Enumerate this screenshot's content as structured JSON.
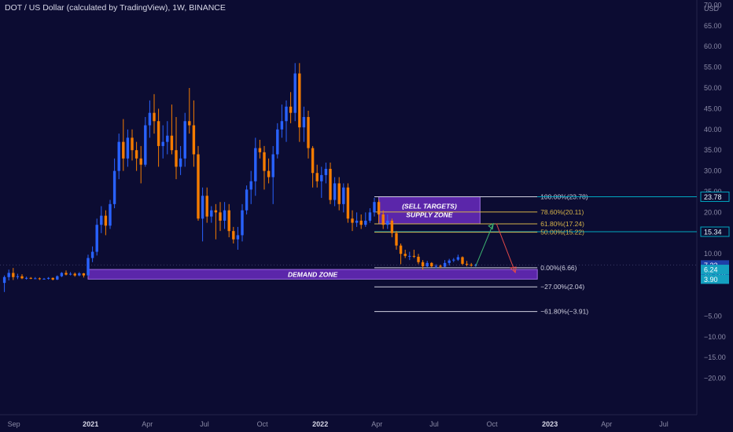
{
  "header": {
    "title": "DOT / US Dollar (calculated by TradingView), 1W, BINANCE",
    "currency": "USD"
  },
  "colors": {
    "background": "#0c0c32",
    "up": "#2962ff",
    "down": "#f57c00",
    "zone": "#6a2cc0",
    "fib_line": "#d0d0e0",
    "fib_accent": "#d4b24a",
    "price_line": "#00a8c0",
    "axis_text": "#8a8aa6"
  },
  "chart_data": {
    "type": "candlestick",
    "title": "DOT / US Dollar (calculated by TradingView), 1W, BINANCE",
    "y_axis": {
      "position": "right",
      "label": "USD",
      "ticks": [
        70,
        65,
        60,
        55,
        50,
        45,
        40,
        35,
        30,
        25,
        20,
        15,
        10,
        -5,
        -10,
        -15,
        -20
      ],
      "range": [
        -23,
        73
      ]
    },
    "x_axis": {
      "range": [
        "2020-08-10",
        "2023-07-24"
      ],
      "ticks": [
        {
          "label": "Sep",
          "date": "2020-09-01",
          "bold": false
        },
        {
          "label": "2021",
          "date": "2021-01-01",
          "bold": true
        },
        {
          "label": "Apr",
          "date": "2021-04-01",
          "bold": false
        },
        {
          "label": "Jul",
          "date": "2021-07-01",
          "bold": false
        },
        {
          "label": "Oct",
          "date": "2021-10-01",
          "bold": false
        },
        {
          "label": "2022",
          "date": "2022-01-01",
          "bold": true
        },
        {
          "label": "Apr",
          "date": "2022-04-01",
          "bold": false
        },
        {
          "label": "Jul",
          "date": "2022-07-01",
          "bold": false
        },
        {
          "label": "Oct",
          "date": "2022-10-01",
          "bold": false
        },
        {
          "label": "2023",
          "date": "2023-01-01",
          "bold": true
        },
        {
          "label": "Apr",
          "date": "2023-04-01",
          "bold": false
        },
        {
          "label": "Jul",
          "date": "2023-07-01",
          "bold": false
        }
      ]
    },
    "candles": [
      {
        "date": "2020-08-17",
        "o": 3.0,
        "h": 4.8,
        "l": 0.8,
        "c": 4.4
      },
      {
        "date": "2020-08-24",
        "o": 4.4,
        "h": 6.2,
        "l": 3.6,
        "c": 5.4
      },
      {
        "date": "2020-08-31",
        "o": 5.4,
        "h": 6.6,
        "l": 3.7,
        "c": 4.4
      },
      {
        "date": "2020-09-07",
        "o": 4.4,
        "h": 5.2,
        "l": 3.9,
        "c": 4.6
      },
      {
        "date": "2020-09-14",
        "o": 4.6,
        "h": 5.1,
        "l": 3.9,
        "c": 4.1
      },
      {
        "date": "2020-09-21",
        "o": 4.1,
        "h": 4.5,
        "l": 3.8,
        "c": 4.2
      },
      {
        "date": "2020-09-28",
        "o": 4.2,
        "h": 4.4,
        "l": 3.9,
        "c": 4.0
      },
      {
        "date": "2020-10-05",
        "o": 4.0,
        "h": 4.4,
        "l": 3.9,
        "c": 4.1
      },
      {
        "date": "2020-10-12",
        "o": 4.1,
        "h": 4.3,
        "l": 3.7,
        "c": 3.9
      },
      {
        "date": "2020-10-19",
        "o": 3.9,
        "h": 4.2,
        "l": 3.8,
        "c": 4.0
      },
      {
        "date": "2020-10-26",
        "o": 4.0,
        "h": 4.4,
        "l": 3.8,
        "c": 4.2
      },
      {
        "date": "2020-11-02",
        "o": 4.2,
        "h": 4.3,
        "l": 3.6,
        "c": 3.8
      },
      {
        "date": "2020-11-09",
        "o": 3.8,
        "h": 4.8,
        "l": 3.7,
        "c": 4.6
      },
      {
        "date": "2020-11-16",
        "o": 4.6,
        "h": 5.6,
        "l": 4.4,
        "c": 5.4
      },
      {
        "date": "2020-11-23",
        "o": 5.4,
        "h": 6.0,
        "l": 4.8,
        "c": 5.0
      },
      {
        "date": "2020-11-30",
        "o": 5.0,
        "h": 5.6,
        "l": 4.8,
        "c": 5.2
      },
      {
        "date": "2020-12-07",
        "o": 5.2,
        "h": 5.5,
        "l": 4.5,
        "c": 4.8
      },
      {
        "date": "2020-12-14",
        "o": 4.8,
        "h": 5.6,
        "l": 4.6,
        "c": 5.3
      },
      {
        "date": "2020-12-21",
        "o": 5.3,
        "h": 5.4,
        "l": 4.3,
        "c": 4.8
      },
      {
        "date": "2020-12-28",
        "o": 4.8,
        "h": 9.8,
        "l": 4.6,
        "c": 9.0
      },
      {
        "date": "2021-01-04",
        "o": 9.0,
        "h": 11.8,
        "l": 8.0,
        "c": 10.5
      },
      {
        "date": "2021-01-11",
        "o": 10.5,
        "h": 18.5,
        "l": 9.6,
        "c": 17.0
      },
      {
        "date": "2021-01-18",
        "o": 17.0,
        "h": 21.5,
        "l": 15.0,
        "c": 19.2
      },
      {
        "date": "2021-01-25",
        "o": 19.2,
        "h": 20.5,
        "l": 14.5,
        "c": 16.8
      },
      {
        "date": "2021-02-01",
        "o": 16.8,
        "h": 23.0,
        "l": 16.0,
        "c": 22.0
      },
      {
        "date": "2021-02-08",
        "o": 22.0,
        "h": 33.0,
        "l": 21.0,
        "c": 30.0
      },
      {
        "date": "2021-02-15",
        "o": 30.0,
        "h": 39.0,
        "l": 28.0,
        "c": 37.0
      },
      {
        "date": "2021-02-22",
        "o": 37.0,
        "h": 42.5,
        "l": 30.0,
        "c": 33.0
      },
      {
        "date": "2021-03-01",
        "o": 33.0,
        "h": 40.0,
        "l": 31.0,
        "c": 38.0
      },
      {
        "date": "2021-03-08",
        "o": 38.0,
        "h": 40.0,
        "l": 32.5,
        "c": 35.0
      },
      {
        "date": "2021-03-15",
        "o": 35.0,
        "h": 37.0,
        "l": 30.0,
        "c": 33.0
      },
      {
        "date": "2021-03-22",
        "o": 33.0,
        "h": 36.0,
        "l": 27.0,
        "c": 31.5
      },
      {
        "date": "2021-03-29",
        "o": 31.5,
        "h": 43.0,
        "l": 31.0,
        "c": 41.0
      },
      {
        "date": "2021-04-05",
        "o": 41.0,
        "h": 47.0,
        "l": 38.0,
        "c": 44.0
      },
      {
        "date": "2021-04-12",
        "o": 44.0,
        "h": 48.5,
        "l": 39.0,
        "c": 42.0
      },
      {
        "date": "2021-04-19",
        "o": 42.0,
        "h": 45.0,
        "l": 31.0,
        "c": 36.0
      },
      {
        "date": "2021-04-26",
        "o": 36.0,
        "h": 41.0,
        "l": 33.0,
        "c": 37.0
      },
      {
        "date": "2021-05-03",
        "o": 37.0,
        "h": 42.0,
        "l": 34.0,
        "c": 38.5
      },
      {
        "date": "2021-05-10",
        "o": 38.5,
        "h": 46.0,
        "l": 34.0,
        "c": 35.0
      },
      {
        "date": "2021-05-17",
        "o": 35.0,
        "h": 43.0,
        "l": 28.0,
        "c": 31.0
      },
      {
        "date": "2021-05-24",
        "o": 31.0,
        "h": 36.0,
        "l": 29.0,
        "c": 33.0
      },
      {
        "date": "2021-05-31",
        "o": 33.0,
        "h": 44.0,
        "l": 31.0,
        "c": 42.0
      },
      {
        "date": "2021-06-07",
        "o": 42.0,
        "h": 50.0,
        "l": 39.0,
        "c": 41.0
      },
      {
        "date": "2021-06-14",
        "o": 41.0,
        "h": 47.0,
        "l": 31.0,
        "c": 34.0
      },
      {
        "date": "2021-06-21",
        "o": 34.0,
        "h": 36.0,
        "l": 18.0,
        "c": 18.5
      },
      {
        "date": "2021-06-28",
        "o": 18.5,
        "h": 26.0,
        "l": 13.0,
        "c": 24.0
      },
      {
        "date": "2021-07-05",
        "o": 24.0,
        "h": 26.0,
        "l": 17.5,
        "c": 19.0
      },
      {
        "date": "2021-07-12",
        "o": 19.0,
        "h": 21.5,
        "l": 17.5,
        "c": 20.5
      },
      {
        "date": "2021-07-19",
        "o": 20.5,
        "h": 22.0,
        "l": 13.5,
        "c": 20.0
      },
      {
        "date": "2021-07-26",
        "o": 20.0,
        "h": 22.5,
        "l": 15.5,
        "c": 18.0
      },
      {
        "date": "2021-08-02",
        "o": 18.0,
        "h": 22.5,
        "l": 16.0,
        "c": 20.5
      },
      {
        "date": "2021-08-09",
        "o": 20.5,
        "h": 22.0,
        "l": 14.0,
        "c": 15.5
      },
      {
        "date": "2021-08-16",
        "o": 15.5,
        "h": 16.5,
        "l": 12.5,
        "c": 13.5
      },
      {
        "date": "2021-08-23",
        "o": 13.5,
        "h": 16.5,
        "l": 11.0,
        "c": 14.5
      },
      {
        "date": "2021-08-30",
        "o": 14.5,
        "h": 22.0,
        "l": 13.0,
        "c": 20.5
      },
      {
        "date": "2021-09-06",
        "o": 20.5,
        "h": 26.5,
        "l": 19.5,
        "c": 25.5
      },
      {
        "date": "2021-09-13",
        "o": 25.5,
        "h": 30.0,
        "l": 22.0,
        "c": 27.5
      },
      {
        "date": "2021-09-20",
        "o": 27.5,
        "h": 38.0,
        "l": 24.0,
        "c": 35.5
      },
      {
        "date": "2021-09-27",
        "o": 35.5,
        "h": 37.5,
        "l": 33.0,
        "c": 34.5
      },
      {
        "date": "2021-10-04",
        "o": 34.5,
        "h": 36.0,
        "l": 25.5,
        "c": 30.0
      },
      {
        "date": "2021-10-11",
        "o": 30.0,
        "h": 33.0,
        "l": 27.0,
        "c": 28.5
      },
      {
        "date": "2021-10-18",
        "o": 28.5,
        "h": 36.0,
        "l": 22.0,
        "c": 34.0
      },
      {
        "date": "2021-10-25",
        "o": 34.0,
        "h": 41.5,
        "l": 33.0,
        "c": 40.0
      },
      {
        "date": "2021-11-01",
        "o": 40.0,
        "h": 46.0,
        "l": 38.0,
        "c": 42.0
      },
      {
        "date": "2021-11-08",
        "o": 42.0,
        "h": 47.0,
        "l": 37.0,
        "c": 45.5
      },
      {
        "date": "2021-11-15",
        "o": 45.5,
        "h": 49.0,
        "l": 41.5,
        "c": 44.0
      },
      {
        "date": "2021-11-22",
        "o": 44.0,
        "h": 56.0,
        "l": 42.0,
        "c": 53.5
      },
      {
        "date": "2021-11-29",
        "o": 53.5,
        "h": 56.0,
        "l": 37.0,
        "c": 40.5
      },
      {
        "date": "2021-12-06",
        "o": 40.5,
        "h": 45.5,
        "l": 37.0,
        "c": 43.0
      },
      {
        "date": "2021-12-13",
        "o": 43.0,
        "h": 44.5,
        "l": 33.0,
        "c": 35.5
      },
      {
        "date": "2021-12-20",
        "o": 35.5,
        "h": 36.0,
        "l": 26.0,
        "c": 29.5
      },
      {
        "date": "2021-12-27",
        "o": 29.5,
        "h": 31.5,
        "l": 26.0,
        "c": 27.5
      },
      {
        "date": "2022-01-03",
        "o": 27.5,
        "h": 31.0,
        "l": 23.5,
        "c": 29.0
      },
      {
        "date": "2022-01-10",
        "o": 29.0,
        "h": 32.0,
        "l": 27.0,
        "c": 30.5
      },
      {
        "date": "2022-01-17",
        "o": 30.5,
        "h": 32.0,
        "l": 22.0,
        "c": 23.0
      },
      {
        "date": "2022-01-24",
        "o": 23.0,
        "h": 28.5,
        "l": 21.5,
        "c": 27.0
      },
      {
        "date": "2022-01-31",
        "o": 27.0,
        "h": 28.5,
        "l": 20.5,
        "c": 22.0
      },
      {
        "date": "2022-02-07",
        "o": 22.0,
        "h": 27.0,
        "l": 20.0,
        "c": 26.0
      },
      {
        "date": "2022-02-14",
        "o": 26.0,
        "h": 27.0,
        "l": 17.5,
        "c": 18.5
      },
      {
        "date": "2022-02-21",
        "o": 18.5,
        "h": 20.5,
        "l": 15.5,
        "c": 17.5
      },
      {
        "date": "2022-02-28",
        "o": 17.5,
        "h": 20.0,
        "l": 16.5,
        "c": 18.0
      },
      {
        "date": "2022-03-07",
        "o": 18.0,
        "h": 19.5,
        "l": 16.0,
        "c": 17.0
      },
      {
        "date": "2022-03-14",
        "o": 17.0,
        "h": 20.0,
        "l": 16.5,
        "c": 18.0
      },
      {
        "date": "2022-03-21",
        "o": 18.0,
        "h": 21.0,
        "l": 17.5,
        "c": 20.0
      },
      {
        "date": "2022-03-28",
        "o": 20.0,
        "h": 23.5,
        "l": 19.0,
        "c": 22.5
      },
      {
        "date": "2022-04-04",
        "o": 22.5,
        "h": 23.0,
        "l": 17.5,
        "c": 19.5
      },
      {
        "date": "2022-04-11",
        "o": 19.5,
        "h": 20.5,
        "l": 16.0,
        "c": 17.0
      },
      {
        "date": "2022-04-18",
        "o": 17.0,
        "h": 19.5,
        "l": 16.0,
        "c": 18.0
      },
      {
        "date": "2022-04-25",
        "o": 18.0,
        "h": 18.5,
        "l": 14.0,
        "c": 15.0
      },
      {
        "date": "2022-05-02",
        "o": 15.0,
        "h": 15.5,
        "l": 11.0,
        "c": 12.0
      },
      {
        "date": "2022-05-09",
        "o": 12.0,
        "h": 12.5,
        "l": 7.5,
        "c": 10.0
      },
      {
        "date": "2022-05-16",
        "o": 10.0,
        "h": 11.0,
        "l": 9.0,
        "c": 9.5
      },
      {
        "date": "2022-05-23",
        "o": 9.5,
        "h": 10.5,
        "l": 8.5,
        "c": 9.5
      },
      {
        "date": "2022-05-30",
        "o": 9.5,
        "h": 11.0,
        "l": 9.0,
        "c": 9.3
      },
      {
        "date": "2022-06-06",
        "o": 9.3,
        "h": 10.0,
        "l": 7.5,
        "c": 8.0
      },
      {
        "date": "2022-06-13",
        "o": 8.0,
        "h": 8.5,
        "l": 6.2,
        "c": 7.0
      },
      {
        "date": "2022-06-20",
        "o": 7.0,
        "h": 8.3,
        "l": 6.8,
        "c": 7.8
      },
      {
        "date": "2022-06-27",
        "o": 7.8,
        "h": 8.0,
        "l": 6.7,
        "c": 7.0
      },
      {
        "date": "2022-07-04",
        "o": 7.0,
        "h": 7.5,
        "l": 6.5,
        "c": 7.1
      },
      {
        "date": "2022-07-11",
        "o": 7.1,
        "h": 7.4,
        "l": 6.5,
        "c": 6.9
      },
      {
        "date": "2022-07-18",
        "o": 6.9,
        "h": 8.5,
        "l": 6.8,
        "c": 7.8
      },
      {
        "date": "2022-07-25",
        "o": 7.8,
        "h": 8.8,
        "l": 7.2,
        "c": 8.4
      },
      {
        "date": "2022-08-01",
        "o": 8.4,
        "h": 9.0,
        "l": 8.0,
        "c": 8.6
      },
      {
        "date": "2022-08-08",
        "o": 8.6,
        "h": 9.8,
        "l": 8.3,
        "c": 9.2
      },
      {
        "date": "2022-08-15",
        "o": 9.2,
        "h": 9.4,
        "l": 7.3,
        "c": 7.6
      },
      {
        "date": "2022-08-22",
        "o": 7.6,
        "h": 8.3,
        "l": 7.0,
        "c": 7.4
      },
      {
        "date": "2022-08-29",
        "o": 7.4,
        "h": 7.8,
        "l": 6.9,
        "c": 7.2
      },
      {
        "date": "2022-09-05",
        "o": 7.2,
        "h": 7.6,
        "l": 6.9,
        "c": 7.32
      }
    ],
    "zones": [
      {
        "label": "(SELL TARGETS)\nSUPPLY ZONE",
        "from": "2022-04-04",
        "to": "2022-09-12",
        "low": 17.24,
        "high": 23.78
      },
      {
        "label": "DEMAND ZONE",
        "from": "2020-12-28",
        "to": "2022-12-12",
        "low": 3.9,
        "high": 6.24
      }
    ],
    "fib_levels": [
      {
        "label": "100.00%(23.78)",
        "value": 23.78,
        "accent": false
      },
      {
        "label": "78.60%(20.11)",
        "value": 20.11,
        "accent": true
      },
      {
        "label": "61.80%(17.24)",
        "value": 17.24,
        "accent": true
      },
      {
        "label": "50.00%(15.22)",
        "value": 15.22,
        "accent": true
      },
      {
        "label": "0.00%(6.66)",
        "value": 6.66,
        "accent": false
      },
      {
        "label": "−27.00%(2.04)",
        "value": 2.04,
        "accent": false
      },
      {
        "label": "−61.80%(−3.91)",
        "value": -3.91,
        "accent": false
      }
    ],
    "fib_range": {
      "from": "2022-03-28",
      "to": "2022-12-12"
    },
    "projection": [
      {
        "date": "2022-09-05",
        "value": 7.0
      },
      {
        "date": "2022-10-03",
        "value": 17.3
      },
      {
        "date": "2022-11-07",
        "value": 5.5
      }
    ],
    "price_labels": [
      {
        "text": "23.78",
        "value": 23.78,
        "style": "outline"
      },
      {
        "text": "15.34",
        "value": 15.34,
        "style": "outline"
      },
      {
        "text": "7.32",
        "value": 7.32,
        "style": "current"
      },
      {
        "text": "2d 12h",
        "value": 5.3,
        "style": "current"
      },
      {
        "text": "6.24",
        "value": 6.24,
        "style": "zone"
      },
      {
        "text": "3.90",
        "value": 3.9,
        "style": "zone"
      }
    ],
    "horizontal_lines": [
      {
        "value": 15.34
      }
    ]
  }
}
